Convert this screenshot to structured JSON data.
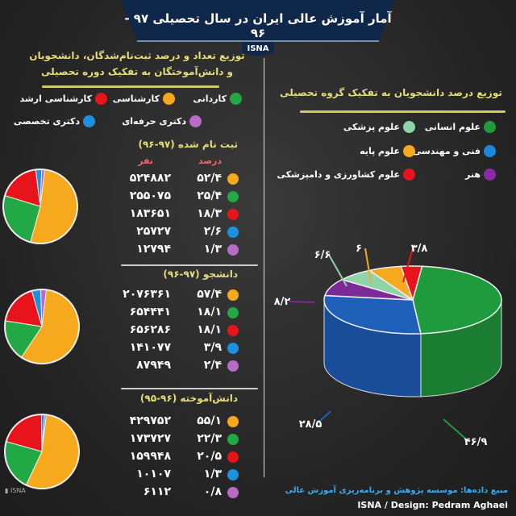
{
  "header": {
    "title": "آمار آموزش عالی ایران در سال تحصیلی ۹۷ - ۹۶",
    "brand": "ISNA"
  },
  "left": {
    "title_line1": "توزیع تعداد و درصد ثبت‌نام‌شدگان، دانشجویان",
    "title_line2": "و دانش‌آموختگان به تفکیک دوره تحصیلی",
    "legend": [
      {
        "label": "کاردانی",
        "color": "#22a845"
      },
      {
        "label": "کارشناسی",
        "color": "#f6a91c"
      },
      {
        "label": "کارشناسی ارشد",
        "color": "#e8141c"
      },
      {
        "label": "دکتری حرفه‌ای",
        "color": "#b86bc4"
      },
      {
        "label": "دکتری تخصصی",
        "color": "#1e90e0"
      }
    ],
    "col_count": "نفر",
    "col_percent": "درصد"
  },
  "right": {
    "title": "توزیع درصد دانشجویان به تفکیک گروه تحصیلی",
    "legend": [
      {
        "label": "علوم انسانی",
        "color": "#1f9a3c"
      },
      {
        "label": "علوم پزشکی",
        "color": "#8fd4a8"
      },
      {
        "label": "فنی و مهندسی",
        "color": "#1e88d8"
      },
      {
        "label": "علوم پایه",
        "color": "#f6a91c"
      },
      {
        "label": "هنر",
        "color": "#8b2aa8"
      },
      {
        "label": "علوم کشاورزی و دامپزشکی",
        "color": "#e8141c"
      }
    ]
  },
  "chart_data": [
    {
      "type": "pie",
      "title": "ثبت نام شده (۹۷-۹۶)",
      "categories": [
        "کارشناسی",
        "کاردانی",
        "کارشناسی ارشد",
        "دکتری تخصصی",
        "دکتری حرفه‌ای"
      ],
      "colors": [
        "#f6a91c",
        "#22a845",
        "#e8141c",
        "#1e90e0",
        "#b86bc4"
      ],
      "values": [
        52.4,
        25.4,
        18.3,
        2.6,
        1.3
      ],
      "percent_labels": [
        "۵۲/۴",
        "۲۵/۴",
        "۱۸/۳",
        "۲/۶",
        "۱/۳"
      ],
      "count_labels": [
        "۵۲۴۸۸۲",
        "۲۵۵۰۷۵",
        "۱۸۳۶۵۱",
        "۲۵۷۲۷",
        "۱۲۷۹۴"
      ]
    },
    {
      "type": "pie",
      "title": "دانشجو (۹۷-۹۶)",
      "categories": [
        "کارشناسی",
        "کاردانی",
        "کارشناسی ارشد",
        "دکتری تخصصی",
        "دکتری حرفه‌ای"
      ],
      "colors": [
        "#f6a91c",
        "#22a845",
        "#e8141c",
        "#1e90e0",
        "#b86bc4"
      ],
      "values": [
        57.4,
        18.1,
        18.1,
        3.9,
        2.4
      ],
      "percent_labels": [
        "۵۷/۴",
        "۱۸/۱",
        "۱۸/۱",
        "۳/۹",
        "۲/۴"
      ],
      "count_labels": [
        "۲۰۷۶۳۶۱",
        "۶۵۴۴۴۱",
        "۶۵۶۲۸۶",
        "۱۴۱۰۷۷",
        "۸۷۹۴۹"
      ]
    },
    {
      "type": "pie",
      "title": "دانش‌آموخته (۹۶-۹۵)",
      "categories": [
        "کارشناسی",
        "کاردانی",
        "کارشناسی ارشد",
        "دکتری تخصصی",
        "دکتری حرفه‌ای"
      ],
      "colors": [
        "#f6a91c",
        "#22a845",
        "#e8141c",
        "#1e90e0",
        "#b86bc4"
      ],
      "values": [
        55.1,
        22.3,
        20.5,
        1.3,
        0.8
      ],
      "percent_labels": [
        "۵۵/۱",
        "۲۲/۳",
        "۲۰/۵",
        "۱/۳",
        "۰/۸"
      ],
      "count_labels": [
        "۴۲۹۷۵۲",
        "۱۷۳۷۲۷",
        "۱۵۹۹۴۸",
        "۱۰۱۰۷",
        "۶۱۱۲"
      ]
    },
    {
      "type": "pie",
      "title": "توزیع درصد دانشجویان به تفکیک گروه تحصیلی",
      "style": "3d",
      "categories": [
        "علوم انسانی",
        "فنی و مهندسی",
        "هنر",
        "علوم پزشکی",
        "علوم پایه",
        "علوم کشاورزی و دامپزشکی"
      ],
      "colors": [
        "#1f9a3c",
        "#1e5fb8",
        "#7b2a98",
        "#8fd4a8",
        "#f6a91c",
        "#e8141c"
      ],
      "values": [
        46.9,
        28.5,
        8.2,
        6.6,
        6,
        3.8
      ],
      "data_labels": [
        "۴۶/۹",
        "۲۸/۵",
        "۸/۲",
        "۶/۶",
        "۶",
        "۳/۸"
      ]
    }
  ],
  "footer": {
    "source": "منبع داده‌ها: موسسه پژوهش و برنامه‌ریزی آموزش عالی",
    "credit": "ISNA / Design: Pedram Aghaei",
    "logo_text": "خبرگزاری دانشجویان ایران Iranian Students' News Agency"
  }
}
